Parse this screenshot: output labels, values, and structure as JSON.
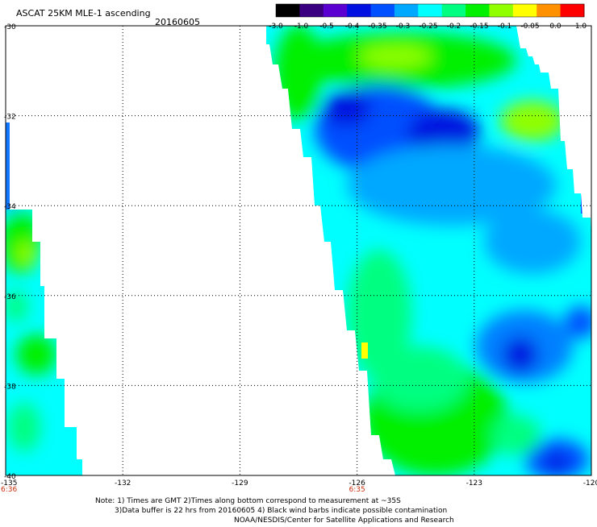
{
  "header": {
    "title": "ASCAT 25KM MLE-1 ascending",
    "date": "20160605"
  },
  "colorbar": {
    "labels": [
      "-3.0",
      "-1.0",
      "-0.5",
      "-0.4",
      "-0.35",
      "-0.3",
      "-0.25",
      "-0.2",
      "-0.15",
      "-0.1",
      "-0.05",
      "0.0",
      "1.0"
    ],
    "colors": [
      "#000000",
      "#3a0080",
      "#5a00d0",
      "#0010e0",
      "#0050ff",
      "#00a8ff",
      "#00ffff",
      "#00ff80",
      "#00f000",
      "#90ff00",
      "#ffff00",
      "#ff9000",
      "#ff0000"
    ]
  },
  "map": {
    "lat_labels": [
      "-30",
      "-32",
      "-34",
      "-36",
      "-38",
      "-40"
    ],
    "lon_labels": [
      "-135",
      "-132",
      "-129",
      "-126",
      "-123",
      "-120"
    ],
    "lat_range": [
      -40,
      -30
    ],
    "lon_range": [
      -135,
      -120
    ],
    "grid": true,
    "time_labels": [
      {
        "lon": -135,
        "text": "6:36"
      },
      {
        "lon": -126,
        "text": "6:35"
      }
    ]
  },
  "footer": {
    "line1": "Note: 1) Times are GMT 2)Times along bottom correspond to measurement at ~35S",
    "line2": "3)Data buffer is 22 hrs from 20160605 4) Black wind barbs indicate possible contamination",
    "line3": "NOAA/NESDIS/Center for Satellite Applications and Research"
  }
}
